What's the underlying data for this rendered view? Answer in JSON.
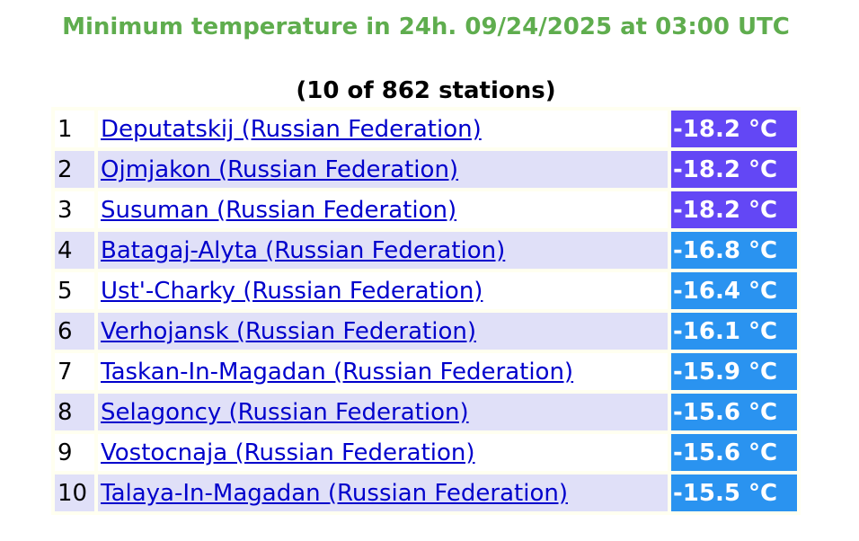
{
  "header": {
    "title": "Minimum temperature in 24h. 09/24/2025 at 03:00 UTC",
    "subtitle": "(10 of 862 stations)"
  },
  "colors": {
    "title": "#5fad4e",
    "purple": "#6347f5",
    "blue": "#2a93f0"
  },
  "rows": [
    {
      "rank": "1",
      "station": "Deputatskij (Russian Federation)",
      "temp": "-18.2 °C",
      "color": "#6347f5"
    },
    {
      "rank": "2",
      "station": "Ojmjakon (Russian Federation)",
      "temp": "-18.2 °C",
      "color": "#6347f5"
    },
    {
      "rank": "3",
      "station": "Susuman (Russian Federation)",
      "temp": "-18.2 °C",
      "color": "#6347f5"
    },
    {
      "rank": "4",
      "station": "Batagaj-Alyta (Russian Federation)",
      "temp": "-16.8 °C",
      "color": "#2a93f0"
    },
    {
      "rank": "5",
      "station": "Ust'-Charky (Russian Federation)",
      "temp": "-16.4 °C",
      "color": "#2a93f0"
    },
    {
      "rank": "6",
      "station": "Verhojansk (Russian Federation)",
      "temp": "-16.1 °C",
      "color": "#2a93f0"
    },
    {
      "rank": "7",
      "station": "Taskan-In-Magadan (Russian Federation)",
      "temp": "-15.9 °C",
      "color": "#2a93f0"
    },
    {
      "rank": "8",
      "station": "Selagoncy (Russian Federation)",
      "temp": "-15.6 °C",
      "color": "#2a93f0"
    },
    {
      "rank": "9",
      "station": "Vostocnaja (Russian Federation)",
      "temp": "-15.6 °C",
      "color": "#2a93f0"
    },
    {
      "rank": "10",
      "station": "Talaya-In-Magadan (Russian Federation)",
      "temp": "-15.5 °C",
      "color": "#2a93f0"
    }
  ]
}
